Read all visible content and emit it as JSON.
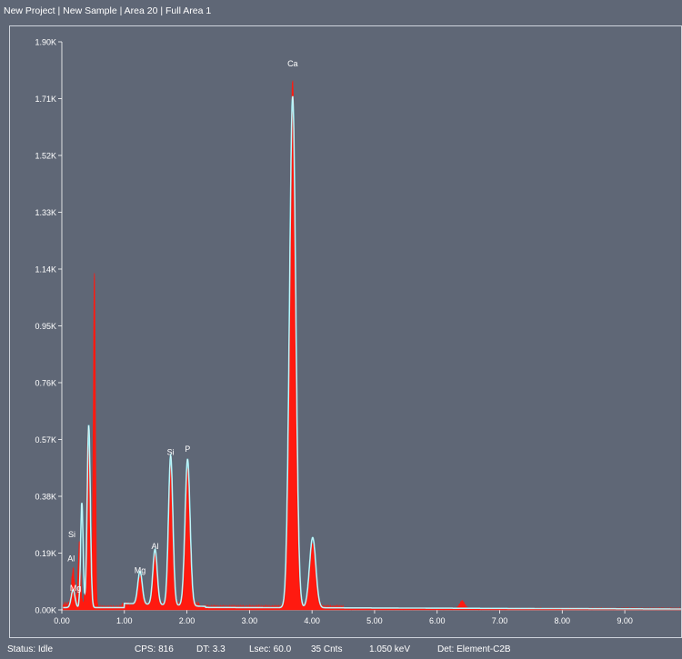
{
  "window": {
    "title": "New Project | New Sample | Area 20 | Full Area 1"
  },
  "colors": {
    "background": "#5f6776",
    "spectrum_fill": "#ff1a10",
    "fit_line": "#8be8f0",
    "axis_text": "#ffffff"
  },
  "status": {
    "state": "Status: Idle",
    "cps": "CPS: 816",
    "dt": "DT: 3.3",
    "lsec": "Lsec: 60.0",
    "counts": "35 Cnts",
    "energy": "1.050 keV",
    "detector": "Det: Element-C2B"
  },
  "chart_data": {
    "type": "area",
    "xlim": [
      0,
      9.9
    ],
    "ylim": [
      0,
      1900
    ],
    "x_ticks": [
      "0.00",
      "1.00",
      "2.00",
      "3.00",
      "4.00",
      "5.00",
      "6.00",
      "7.00",
      "8.00",
      "9.00"
    ],
    "y_ticks": [
      "0.00K",
      "0.19K",
      "0.38K",
      "0.57K",
      "0.76K",
      "0.95K",
      "1.14K",
      "1.33K",
      "1.52K",
      "1.71K",
      "1.90K"
    ],
    "grid": false,
    "peaks": [
      {
        "center": 0.18,
        "height": 120,
        "width": 0.025
      },
      {
        "center": 0.28,
        "height": 210,
        "width": 0.02
      },
      {
        "center": 0.42,
        "height": 600,
        "width": 0.025
      },
      {
        "center": 0.52,
        "height": 1120,
        "width": 0.018
      },
      {
        "center": 1.25,
        "height": 95,
        "width": 0.035
      },
      {
        "center": 1.49,
        "height": 170,
        "width": 0.035
      },
      {
        "center": 1.74,
        "height": 470,
        "width": 0.035
      },
      {
        "center": 2.01,
        "height": 460,
        "width": 0.04
      },
      {
        "center": 3.69,
        "height": 1760,
        "width": 0.05
      },
      {
        "center": 4.01,
        "height": 210,
        "width": 0.05
      },
      {
        "center": 6.4,
        "height": 25,
        "width": 0.04
      }
    ],
    "fit_peaks": [
      {
        "center": 0.18,
        "height": 60,
        "width": 0.03
      },
      {
        "center": 0.32,
        "height": 350,
        "width": 0.02
      },
      {
        "center": 0.43,
        "height": 610,
        "width": 0.025
      },
      {
        "center": 1.25,
        "height": 110,
        "width": 0.035
      },
      {
        "center": 1.49,
        "height": 185,
        "width": 0.035
      },
      {
        "center": 1.74,
        "height": 500,
        "width": 0.035
      },
      {
        "center": 2.01,
        "height": 490,
        "width": 0.04
      },
      {
        "center": 3.69,
        "height": 1710,
        "width": 0.05
      },
      {
        "center": 4.01,
        "height": 235,
        "width": 0.05
      }
    ],
    "element_labels": [
      {
        "label": "Ca",
        "x": 3.69,
        "y": 1800
      },
      {
        "label": "Si",
        "x": 1.74,
        "y": 500
      },
      {
        "label": "P",
        "x": 2.01,
        "y": 510
      },
      {
        "label": "Al",
        "x": 1.49,
        "y": 185
      },
      {
        "label": "Mg",
        "x": 1.25,
        "y": 105
      },
      {
        "label": "Si",
        "x": 0.16,
        "y": 225
      },
      {
        "label": "Al",
        "x": 0.15,
        "y": 145
      },
      {
        "label": "Mg",
        "x": 0.22,
        "y": 45
      }
    ]
  }
}
